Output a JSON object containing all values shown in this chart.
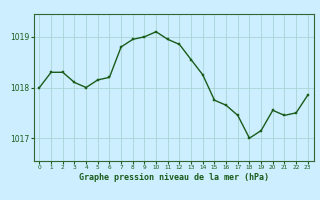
{
  "x": [
    0,
    1,
    2,
    3,
    4,
    5,
    6,
    7,
    8,
    9,
    10,
    11,
    12,
    13,
    14,
    15,
    16,
    17,
    18,
    19,
    20,
    21,
    22,
    23
  ],
  "y": [
    1018.0,
    1018.3,
    1018.3,
    1018.1,
    1018.0,
    1018.15,
    1018.2,
    1018.8,
    1018.95,
    1019.0,
    1019.1,
    1018.95,
    1018.85,
    1018.55,
    1018.25,
    1017.75,
    1017.65,
    1017.45,
    1017.0,
    1017.15,
    1017.55,
    1017.45,
    1017.5,
    1017.85
  ],
  "line_color": "#1a5c1a",
  "marker_color": "#1a5c1a",
  "bg_color": "#cceeff",
  "grid_color": "#aad4d4",
  "xlabel": "Graphe pression niveau de la mer (hPa)",
  "xlabel_color": "#1a5c1a",
  "yticks": [
    1017,
    1018,
    1019
  ],
  "ylim": [
    1016.55,
    1019.45
  ],
  "xlim": [
    -0.5,
    23.5
  ],
  "xticks": [
    0,
    1,
    2,
    3,
    4,
    5,
    6,
    7,
    8,
    9,
    10,
    11,
    12,
    13,
    14,
    15,
    16,
    17,
    18,
    19,
    20,
    21,
    22,
    23
  ],
  "tick_color": "#1a5c1a",
  "spine_color": "#336633"
}
